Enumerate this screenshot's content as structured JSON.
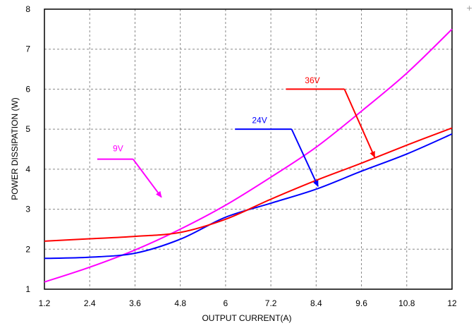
{
  "chart_data": {
    "type": "line",
    "title": "",
    "xlabel": "OUTPUT CURRENT(A)",
    "ylabel": "POWER DISSIPATION (W)",
    "xlim": [
      1.2,
      12
    ],
    "ylim": [
      1,
      8
    ],
    "xticks": [
      1.2,
      2.4,
      3.6,
      4.8,
      6,
      7.2,
      8.4,
      9.6,
      10.8,
      12
    ],
    "xtick_labels": [
      "1.2",
      "2.4",
      "3.6",
      "4.8",
      "6",
      "7.2",
      "8.4",
      "9.6",
      "10.8",
      "12"
    ],
    "yticks": [
      1,
      2,
      3,
      4,
      5,
      6,
      7,
      8
    ],
    "ytick_labels": [
      "1",
      "2",
      "3",
      "4",
      "5",
      "6",
      "7",
      "8"
    ],
    "grid": true,
    "legend": "none",
    "series": [
      {
        "name": "9V",
        "color": "#ff00ff",
        "x": [
          1.2,
          2.4,
          3.6,
          4.8,
          6,
          7.2,
          8.4,
          9.6,
          10.8,
          12
        ],
        "y": [
          1.18,
          1.55,
          1.98,
          2.5,
          3.1,
          3.8,
          4.55,
          5.45,
          6.4,
          7.5
        ]
      },
      {
        "name": "24V",
        "color": "#0000ff",
        "x": [
          1.2,
          2.4,
          3.6,
          4.8,
          6,
          7.2,
          8.4,
          9.6,
          10.8,
          12
        ],
        "y": [
          1.77,
          1.8,
          1.9,
          2.25,
          2.8,
          3.15,
          3.5,
          3.95,
          4.38,
          4.88
        ]
      },
      {
        "name": "36V",
        "color": "#ff0000",
        "x": [
          1.2,
          2.4,
          3.6,
          4.8,
          6,
          7.2,
          8.4,
          9.6,
          10.8,
          12
        ],
        "y": [
          2.2,
          2.26,
          2.32,
          2.42,
          2.75,
          3.25,
          3.72,
          4.15,
          4.6,
          5.03
        ]
      }
    ],
    "annotations": [
      {
        "text": "9V",
        "color": "#ff00ff",
        "text_at": [
          3.15,
          4.45
        ],
        "line": [
          [
            2.6,
            4.25
          ],
          [
            3.55,
            4.25
          ]
        ],
        "arrow_to": [
          4.3,
          3.3
        ]
      },
      {
        "text": "24V",
        "color": "#0000ff",
        "text_at": [
          6.9,
          5.15
        ],
        "line": [
          [
            6.25,
            5.0
          ],
          [
            7.75,
            5.0
          ]
        ],
        "arrow_to": [
          8.45,
          3.57
        ]
      },
      {
        "text": "36V",
        "color": "#ff0000",
        "text_at": [
          8.3,
          6.15
        ],
        "line": [
          [
            7.6,
            6.0
          ],
          [
            9.15,
            6.0
          ]
        ],
        "arrow_to": [
          9.95,
          4.3
        ]
      }
    ]
  },
  "corner_glyph": "+"
}
